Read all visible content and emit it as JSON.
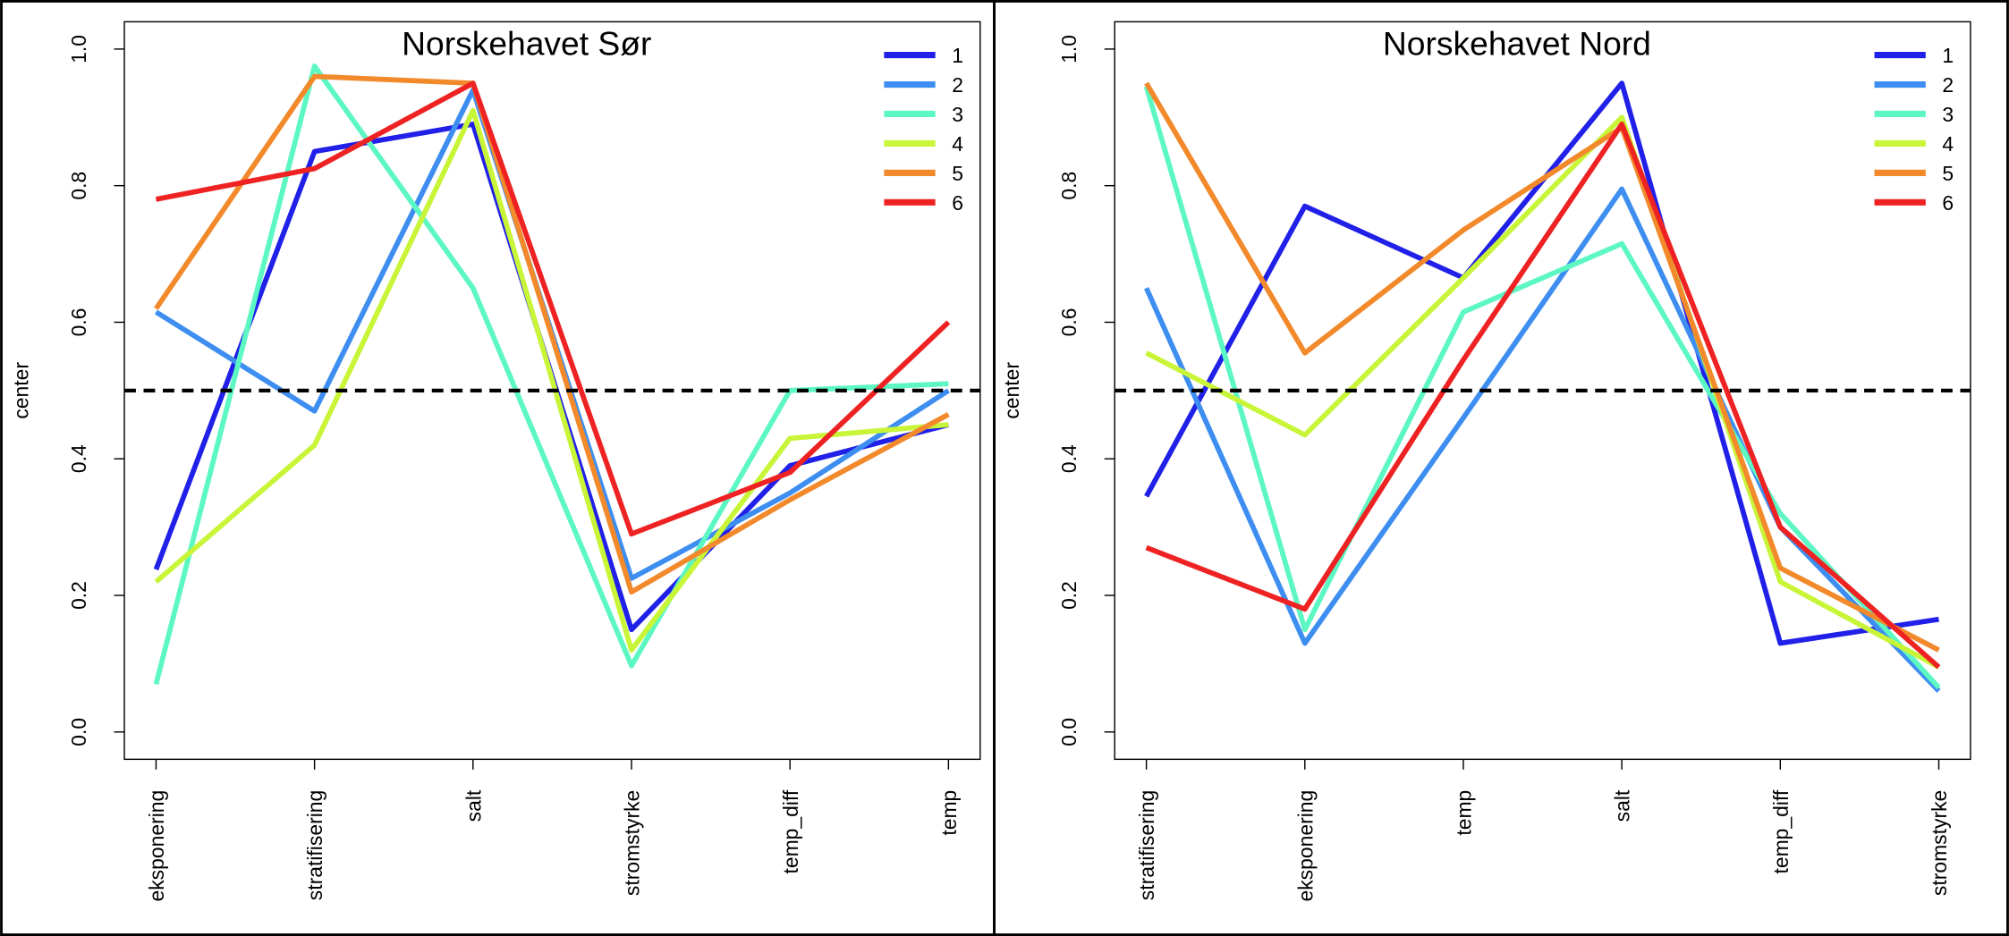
{
  "chart_data": [
    {
      "type": "line",
      "title": "Norskehavet Sør",
      "y_label": "center",
      "categories": [
        "eksponering",
        "stratifisering",
        "salt",
        "stromstyrke",
        "temp_diff",
        "temp"
      ],
      "series": [
        {
          "name": "1",
          "color": "#2020e8",
          "values": [
            0.238,
            0.85,
            0.89,
            0.15,
            0.39,
            0.45
          ]
        },
        {
          "name": "2",
          "color": "#3d8ef0",
          "values": [
            0.615,
            0.47,
            0.94,
            0.225,
            0.35,
            0.5
          ]
        },
        {
          "name": "3",
          "color": "#5cf7c3",
          "values": [
            0.07,
            0.975,
            0.65,
            0.097,
            0.5,
            0.51
          ]
        },
        {
          "name": "4",
          "color": "#c8f537",
          "values": [
            0.22,
            0.42,
            0.91,
            0.12,
            0.43,
            0.45
          ]
        },
        {
          "name": "5",
          "color": "#f2892b",
          "values": [
            0.62,
            0.96,
            0.95,
            0.205,
            0.34,
            0.465
          ]
        },
        {
          "name": "6",
          "color": "#ee2222",
          "values": [
            0.78,
            0.825,
            0.95,
            0.29,
            0.38,
            0.6
          ]
        }
      ],
      "ylim": [
        -0.04,
        1.04
      ],
      "yticks": [
        {
          "value": 0,
          "label": "0.0"
        },
        {
          "value": 0.2,
          "label": "0.2"
        },
        {
          "value": 0.4,
          "label": "0.4"
        },
        {
          "value": 0.6,
          "label": "0.6"
        },
        {
          "value": 0.8,
          "label": "0.8"
        },
        {
          "value": 1,
          "label": "1.0"
        }
      ],
      "hline": 0.5,
      "legend": "topright"
    },
    {
      "type": "line",
      "title": "Norskehavet Nord",
      "y_label": "center",
      "categories": [
        "stratifisering",
        "eksponering",
        "temp",
        "salt",
        "temp_diff",
        "stromstyrke"
      ],
      "series": [
        {
          "name": "1",
          "color": "#2020e8",
          "values": [
            0.345,
            0.77,
            0.665,
            0.95,
            0.13,
            0.165
          ]
        },
        {
          "name": "2",
          "color": "#3d8ef0",
          "values": [
            0.65,
            0.13,
            0.46,
            0.795,
            0.3,
            0.06
          ]
        },
        {
          "name": "3",
          "color": "#5cf7c3",
          "values": [
            0.945,
            0.15,
            0.615,
            0.715,
            0.32,
            0.065
          ]
        },
        {
          "name": "4",
          "color": "#c8f537",
          "values": [
            0.555,
            0.435,
            0.665,
            0.9,
            0.22,
            0.095
          ]
        },
        {
          "name": "5",
          "color": "#f2892b",
          "values": [
            0.95,
            0.555,
            0.735,
            0.885,
            0.24,
            0.12
          ]
        },
        {
          "name": "6",
          "color": "#ee2222",
          "values": [
            0.27,
            0.18,
            0.545,
            0.89,
            0.3,
            0.095
          ]
        }
      ],
      "ylim": [
        -0.04,
        1.04
      ],
      "yticks": [
        {
          "value": 0,
          "label": "0.0"
        },
        {
          "value": 0.2,
          "label": "0.2"
        },
        {
          "value": 0.4,
          "label": "0.4"
        },
        {
          "value": 0.6,
          "label": "0.6"
        },
        {
          "value": 0.8,
          "label": "0.8"
        },
        {
          "value": 1,
          "label": "1.0"
        }
      ],
      "hline": 0.5,
      "legend": "topright"
    }
  ]
}
